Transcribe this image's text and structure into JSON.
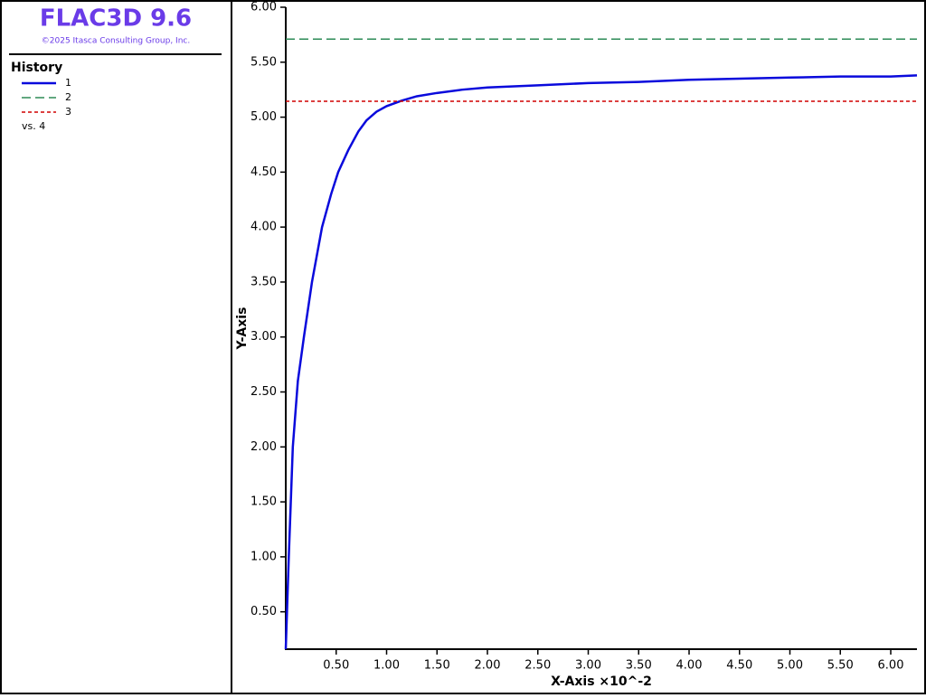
{
  "chart_data": {
    "type": "line",
    "app_title": "FLAC3D 9.6",
    "copyright": "©2025 Itasca Consulting Group, Inc.",
    "legend_title": "History",
    "legend_note": "vs. 4",
    "xlabel": "X-Axis ×10^-2",
    "ylabel": "Y-Axis",
    "xlim": [
      0,
      6.26
    ],
    "ylim": [
      0.16,
      6.0
    ],
    "xticks": [
      {
        "value": 0.5,
        "label": "0.50"
      },
      {
        "value": 1,
        "label": "1.00"
      },
      {
        "value": 1.5,
        "label": "1.50"
      },
      {
        "value": 2,
        "label": "2.00"
      },
      {
        "value": 2.5,
        "label": "2.50"
      },
      {
        "value": 3,
        "label": "3.00"
      },
      {
        "value": 3.5,
        "label": "3.50"
      },
      {
        "value": 4,
        "label": "4.00"
      },
      {
        "value": 4.5,
        "label": "4.50"
      },
      {
        "value": 5,
        "label": "5.00"
      },
      {
        "value": 5.5,
        "label": "5.50"
      },
      {
        "value": 6,
        "label": "6.00"
      }
    ],
    "yticks": [
      {
        "value": 0.5,
        "label": "0.50"
      },
      {
        "value": 1,
        "label": "1.00"
      },
      {
        "value": 1.5,
        "label": "1.50"
      },
      {
        "value": 2,
        "label": "2.00"
      },
      {
        "value": 2.5,
        "label": "2.50"
      },
      {
        "value": 3,
        "label": "3.00"
      },
      {
        "value": 3.5,
        "label": "3.50"
      },
      {
        "value": 4,
        "label": "4.00"
      },
      {
        "value": 4.5,
        "label": "4.50"
      },
      {
        "value": 5,
        "label": "5.00"
      },
      {
        "value": 5.5,
        "label": "5.50"
      },
      {
        "value": 6,
        "label": "6.00"
      }
    ],
    "series": [
      {
        "name": "1",
        "color": "#0a0adc",
        "style": "solid",
        "x": [
          0.0,
          0.03,
          0.07,
          0.12,
          0.18,
          0.26,
          0.36,
          0.45,
          0.52,
          0.62,
          0.72,
          0.8,
          0.9,
          1.0,
          1.15,
          1.3,
          1.5,
          1.75,
          2.0,
          2.5,
          3.0,
          3.5,
          4.0,
          4.5,
          5.0,
          5.5,
          6.0,
          6.26
        ],
        "values": [
          0.16,
          1.0,
          2.0,
          2.6,
          3.0,
          3.5,
          4.0,
          4.3,
          4.5,
          4.7,
          4.87,
          4.97,
          5.05,
          5.1,
          5.15,
          5.19,
          5.22,
          5.25,
          5.27,
          5.29,
          5.31,
          5.32,
          5.34,
          5.35,
          5.36,
          5.37,
          5.37,
          5.38
        ]
      },
      {
        "name": "2",
        "color": "#2e8b57",
        "style": "dashed",
        "x": [
          0,
          6.26
        ],
        "values": [
          5.71,
          5.71
        ]
      },
      {
        "name": "3",
        "color": "#d00000",
        "style": "dotted",
        "x": [
          0,
          6.26
        ],
        "values": [
          5.145,
          5.145
        ]
      }
    ]
  }
}
